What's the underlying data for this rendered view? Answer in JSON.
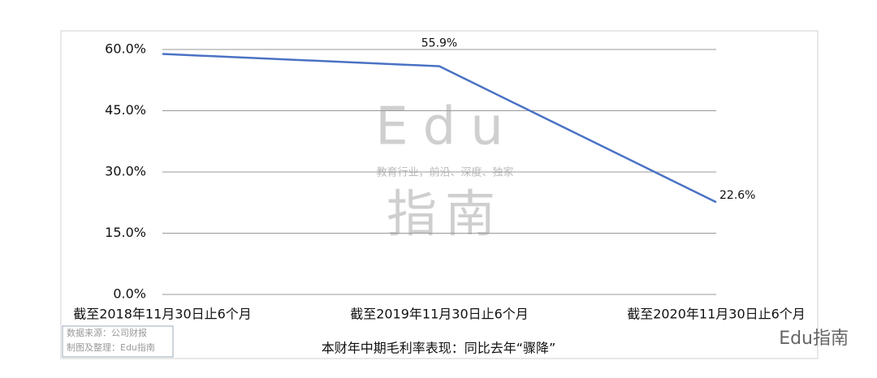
{
  "chart_data": {
    "type": "line",
    "title": "本财年中期毛利率表现：同比去年“骤降”",
    "categories": [
      "截至2018年11月30日止6个月",
      "截至2019年11月30日止6个月",
      "截至2020年11月30日止6个月"
    ],
    "values": [
      58.9,
      55.9,
      22.6
    ],
    "value_labels": [
      null,
      "55.9%",
      "22.6%"
    ],
    "color": "#4a72c4",
    "ylim": [
      0,
      60
    ],
    "yticks": [
      {
        "value": 0,
        "label": "0.0%"
      },
      {
        "value": 15,
        "label": "15.0%"
      },
      {
        "value": 30,
        "label": "30.0%"
      },
      {
        "value": 45,
        "label": "45.0%"
      },
      {
        "value": 60,
        "label": "60.0%"
      }
    ],
    "grid": true,
    "watermark": {
      "big": "Edu",
      "tagline": "教育行业，前沿、深度、独家",
      "bottom": "指南"
    },
    "source": [
      "数据来源：公司财报",
      "制图及整理：Edu指南"
    ],
    "brand": "Edu指南"
  }
}
